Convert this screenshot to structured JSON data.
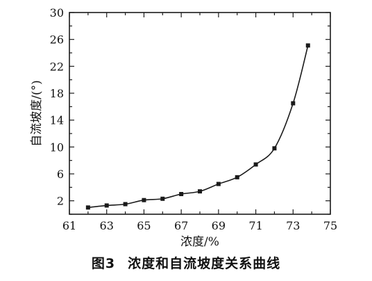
{
  "chart_data": {
    "type": "line",
    "title": "",
    "xlabel": "浓度/%",
    "ylabel": "自流坡度/(°)",
    "xlim": [
      61,
      75
    ],
    "ylim": [
      0,
      30
    ],
    "x_ticks": [
      "61",
      "63",
      "65",
      "67",
      "69",
      "71",
      "73",
      "75"
    ],
    "y_ticks": [
      "2",
      "6",
      "10",
      "14",
      "18",
      "22",
      "26",
      "30"
    ],
    "grid": false,
    "marker": "square",
    "series": [
      {
        "x": [
          62,
          63,
          64,
          65,
          66,
          67,
          68,
          69,
          70,
          71,
          72,
          73,
          73.8
        ],
        "y": [
          1.0,
          1.3,
          1.5,
          2.1,
          2.3,
          3.0,
          3.4,
          4.5,
          5.5,
          7.4,
          9.8,
          16.5,
          25.1
        ]
      }
    ],
    "colors": {
      "line": "#1a1a1a",
      "marker": "#1a1a1a",
      "frame": "#1a1a1a"
    }
  },
  "caption": {
    "figure_number": "图3",
    "title": "浓度和自流坡度关系曲线"
  }
}
